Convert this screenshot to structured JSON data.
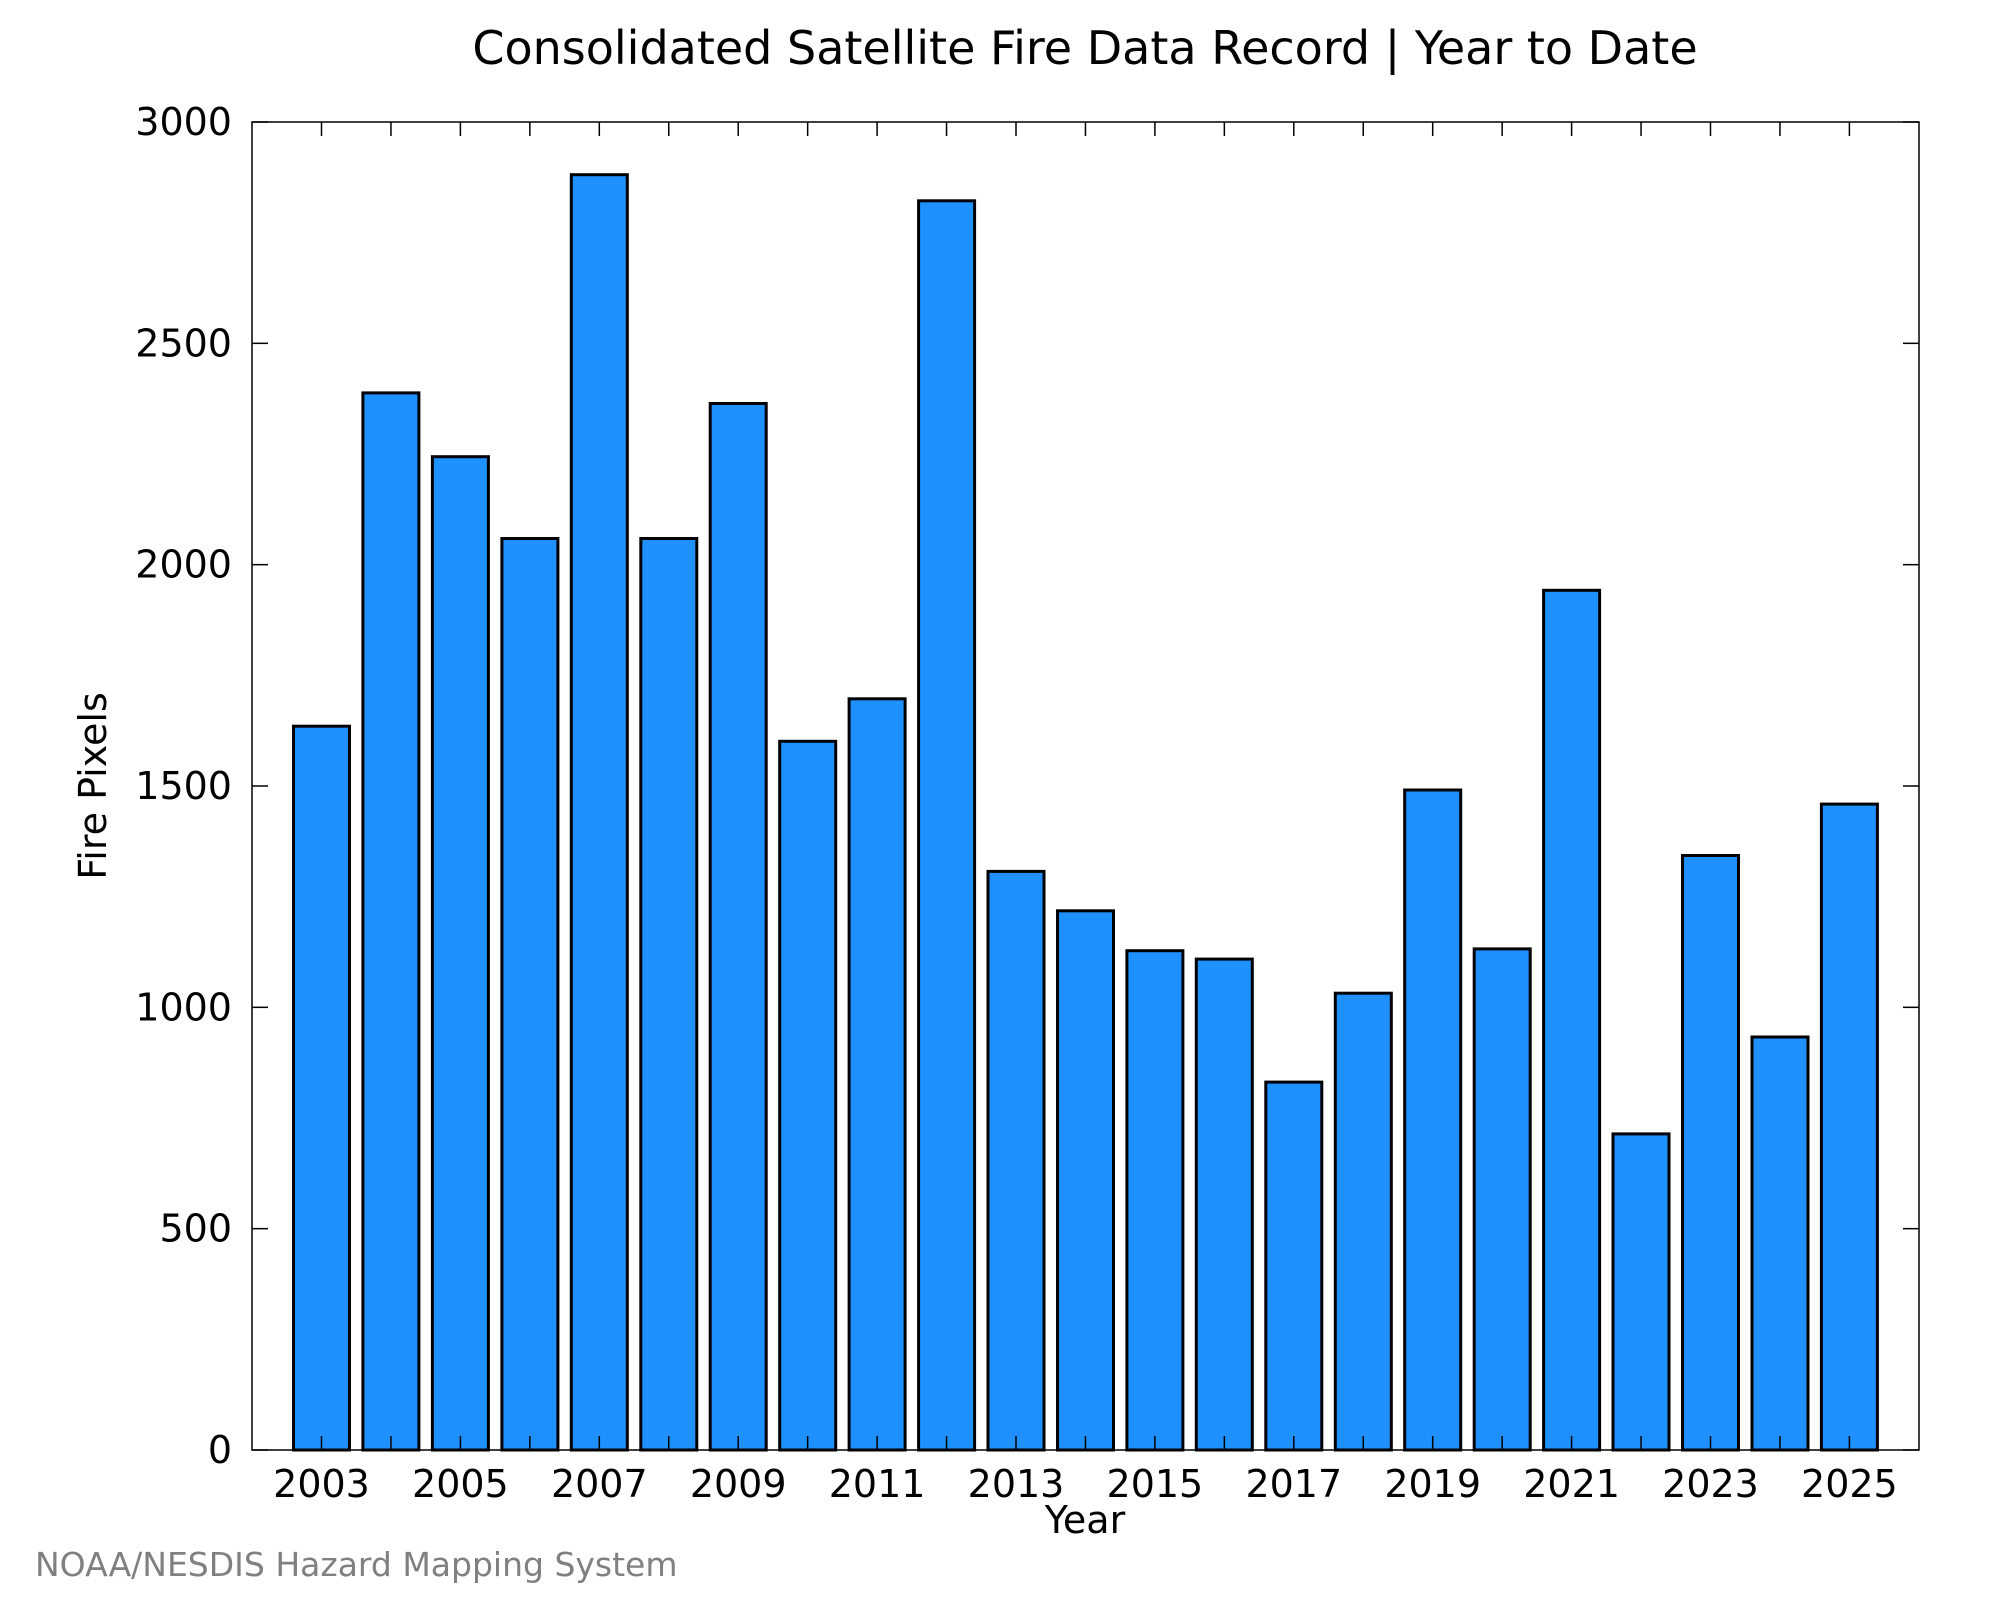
{
  "chart_data": {
    "type": "bar",
    "title": "Consolidated Satellite Fire Data Record | Year to Date",
    "xlabel": "Year",
    "ylabel": "Fire Pixels",
    "ylim": [
      0,
      3000
    ],
    "yticks": [
      0,
      500,
      1000,
      1500,
      2000,
      2500,
      3000
    ],
    "xticks": [
      "2003",
      "2005",
      "2007",
      "2009",
      "2011",
      "2013",
      "2015",
      "2017",
      "2019",
      "2021",
      "2023",
      "2025"
    ],
    "categories": [
      "2003",
      "2004",
      "2005",
      "2006",
      "2007",
      "2008",
      "2009",
      "2010",
      "2011",
      "2012",
      "2013",
      "2014",
      "2015",
      "2016",
      "2017",
      "2018",
      "2019",
      "2020",
      "2021",
      "2022",
      "2023",
      "2024",
      "2025"
    ],
    "values": [
      1635,
      2388,
      2244,
      2059,
      2881,
      2059,
      2364,
      1601,
      1697,
      2822,
      1307,
      1218,
      1128,
      1109,
      831,
      1032,
      1491,
      1132,
      1942,
      714,
      1343,
      933,
      1459
    ],
    "bar_color": "#1e90ff",
    "grid": false,
    "legend": "none"
  },
  "credit": "NOAA/NESDIS Hazard Mapping System"
}
